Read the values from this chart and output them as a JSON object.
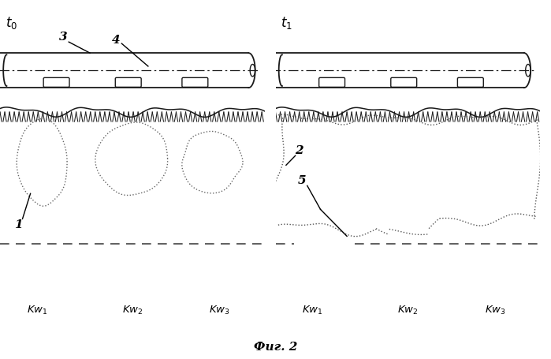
{
  "bg_color": "#ffffff",
  "lc": "#1a1a1a",
  "dc": "#555555",
  "fig_width": 6.99,
  "fig_height": 4.55,
  "dpi": 100
}
